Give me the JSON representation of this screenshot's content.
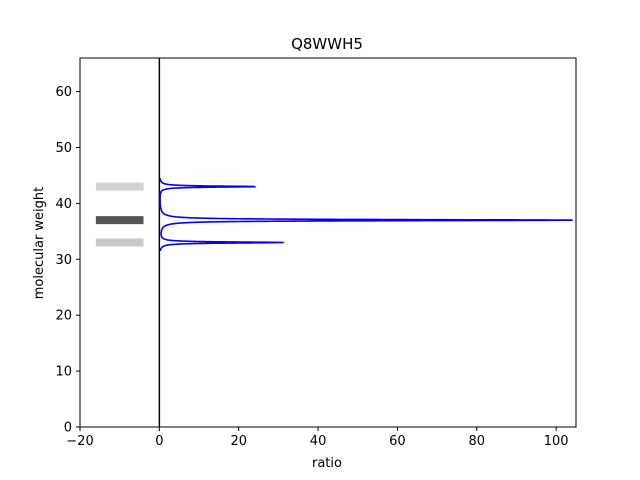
{
  "chart_data": {
    "type": "line",
    "title": "Q8WWH5",
    "xlabel": "ratio",
    "ylabel": "molecular weight",
    "xlim": [
      -20,
      105
    ],
    "ylim": [
      0,
      66
    ],
    "xticks": [
      -20,
      0,
      20,
      40,
      60,
      80,
      100
    ],
    "yticks": [
      0,
      10,
      20,
      30,
      40,
      50,
      60
    ],
    "xtick_labels": [
      "−20",
      "0",
      "20",
      "40",
      "60",
      "80",
      "100"
    ],
    "ytick_labels": [
      "0",
      "10",
      "20",
      "30",
      "40",
      "50",
      "60"
    ],
    "grid": false,
    "series": [
      {
        "color": "#0000ff",
        "peaks": [
          {
            "mw": 33,
            "ratio": 31
          },
          {
            "mw": 37,
            "ratio": 104
          },
          {
            "mw": 43,
            "ratio": 24
          }
        ],
        "mw_range": [
          31.5,
          44.5
        ]
      }
    ],
    "zero_line": {
      "x": 0,
      "color": "#000000"
    },
    "bands": [
      {
        "mw": 43,
        "x_range": [
          -16,
          -4
        ],
        "color": "#d3d3d3"
      },
      {
        "mw": 37,
        "x_range": [
          -16,
          -4
        ],
        "color": "#555555"
      },
      {
        "mw": 33,
        "x_range": [
          -16,
          -4
        ],
        "color": "#c8c8c8"
      }
    ]
  }
}
